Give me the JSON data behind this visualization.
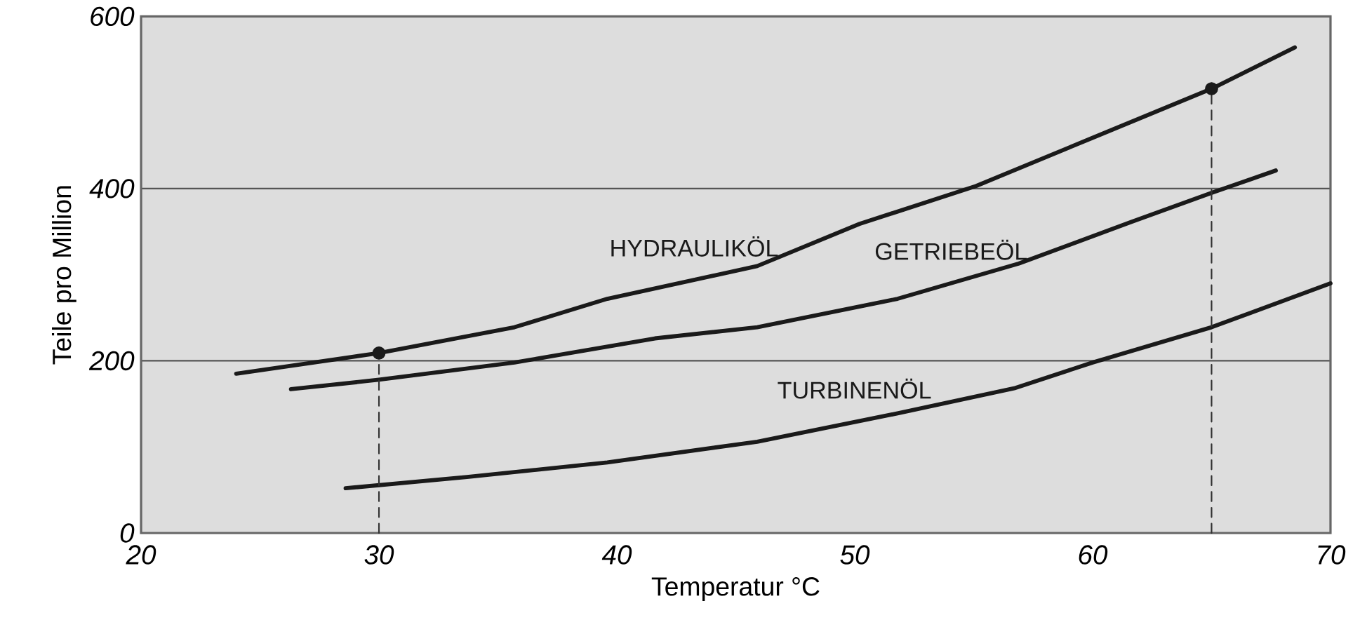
{
  "chart_data": {
    "type": "line",
    "xlabel": "Temperatur °C",
    "ylabel": "Teile pro Million",
    "xlim": [
      20,
      70
    ],
    "ylim": [
      0,
      600
    ],
    "xticks": [
      20,
      30,
      40,
      50,
      60,
      70
    ],
    "yticks": [
      0,
      200,
      400,
      600
    ],
    "grid": "y",
    "marker": "none",
    "line_style": "solid",
    "series": [
      {
        "name": "HYDRAULIKÖL",
        "color": "#1a1a1a",
        "x": [
          24.0,
          30,
          35.7,
          39.6,
          45.9,
          50.2,
          55.1,
          60.0,
          65,
          68.5
        ],
        "values": [
          185,
          209,
          239,
          272,
          310,
          359,
          403,
          459,
          516,
          564
        ]
      },
      {
        "name": "GETRIEBEÖL",
        "color": "#1a1a1a",
        "x": [
          26.3,
          30,
          35.7,
          41.6,
          45.9,
          51.8,
          56.9,
          61.6,
          65,
          67.7
        ],
        "values": [
          167,
          178,
          198,
          226,
          239,
          272,
          313,
          361,
          395,
          421
        ]
      },
      {
        "name": "TURBINENÖL",
        "color": "#1a1a1a",
        "x": [
          28.6,
          33.7,
          39.6,
          45.9,
          51.8,
          56.7,
          60,
          65,
          70
        ],
        "values": [
          52,
          65,
          82,
          106,
          139,
          168,
          198,
          239,
          290
        ]
      },
      {
        "color": "#333333",
        "line_style": "dashed",
        "x": [
          30,
          30
        ],
        "values": [
          0,
          209
        ]
      },
      {
        "color": "#333333",
        "line_style": "dashed",
        "x": [
          65,
          65
        ],
        "values": [
          0,
          516
        ]
      },
      {
        "type": "scatter",
        "marker": "circle",
        "color": "#1a1a1a",
        "x": [
          30,
          65
        ],
        "values": [
          209,
          516
        ]
      }
    ]
  }
}
